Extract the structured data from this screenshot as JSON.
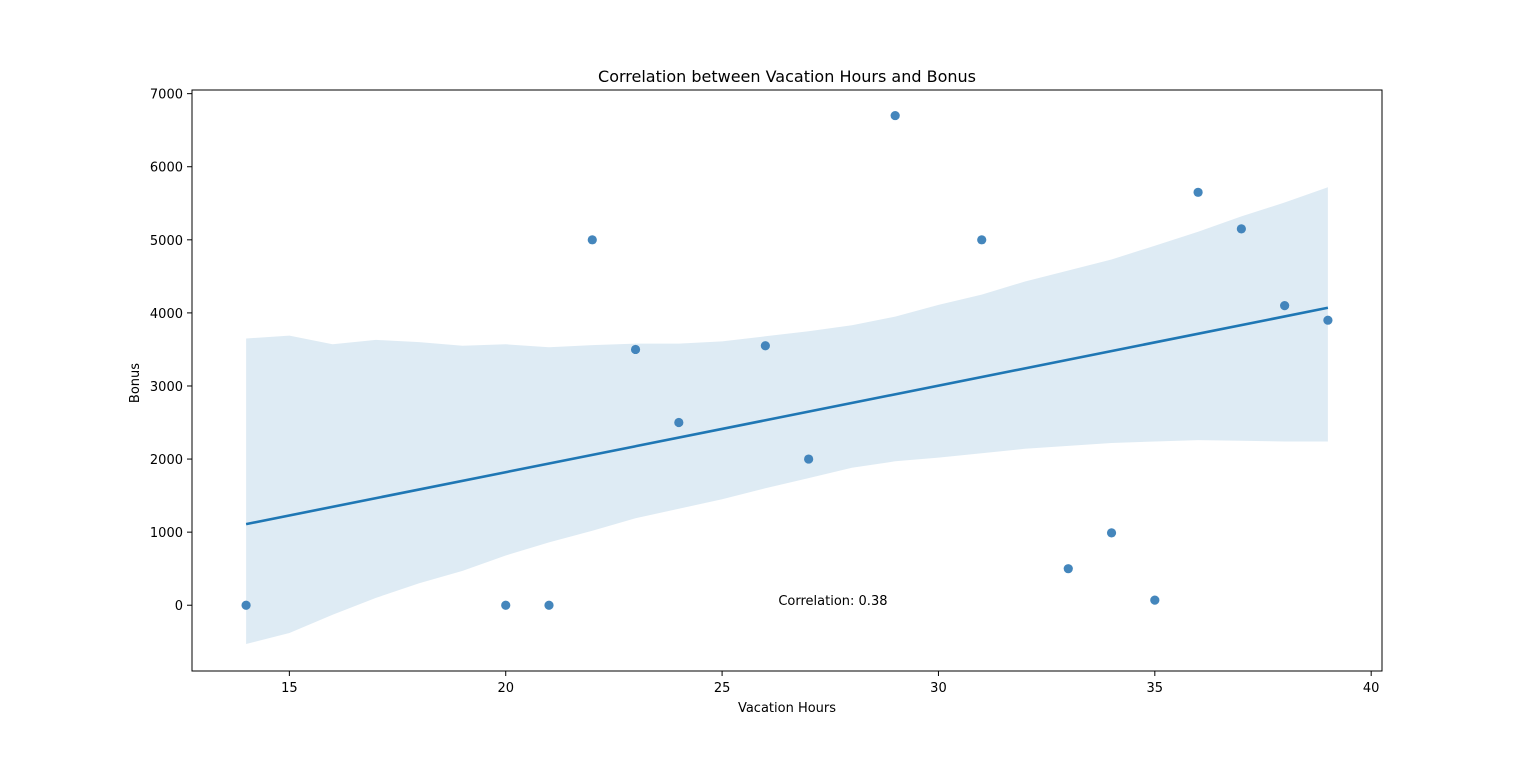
{
  "chart_data": {
    "type": "scatter",
    "title": "Correlation between Vacation Hours and Bonus",
    "xlabel": "Vacation Hours",
    "ylabel": "Bonus",
    "xlim": [
      12.75,
      40.25
    ],
    "ylim": [
      -900,
      7050
    ],
    "xticks": [
      15,
      20,
      25,
      30,
      35,
      40
    ],
    "yticks": [
      0,
      1000,
      2000,
      3000,
      4000,
      5000,
      6000,
      7000
    ],
    "grid": false,
    "annotation": {
      "text": "Correlation: 0.38",
      "x": 26.3,
      "y": 70
    },
    "points": [
      {
        "x": 14,
        "y": 0
      },
      {
        "x": 20,
        "y": 0
      },
      {
        "x": 21,
        "y": 0
      },
      {
        "x": 22,
        "y": 5000
      },
      {
        "x": 23,
        "y": 3500
      },
      {
        "x": 24,
        "y": 2500
      },
      {
        "x": 26,
        "y": 3550
      },
      {
        "x": 27,
        "y": 2000
      },
      {
        "x": 29,
        "y": 6700
      },
      {
        "x": 31,
        "y": 5000
      },
      {
        "x": 33,
        "y": 500
      },
      {
        "x": 34,
        "y": 990
      },
      {
        "x": 35,
        "y": 70
      },
      {
        "x": 36,
        "y": 5650
      },
      {
        "x": 37,
        "y": 5150
      },
      {
        "x": 38,
        "y": 4100
      },
      {
        "x": 39,
        "y": 3900
      }
    ],
    "regression_line": [
      {
        "x": 14,
        "y": 1110
      },
      {
        "x": 39,
        "y": 4070
      }
    ],
    "confidence_band": [
      {
        "x": 14,
        "lower": -530,
        "upper": 3650
      },
      {
        "x": 15,
        "lower": -380,
        "upper": 3690
      },
      {
        "x": 16,
        "lower": -130,
        "upper": 3570
      },
      {
        "x": 17,
        "lower": 100,
        "upper": 3630
      },
      {
        "x": 18,
        "lower": 300,
        "upper": 3600
      },
      {
        "x": 19,
        "lower": 470,
        "upper": 3550
      },
      {
        "x": 20,
        "lower": 680,
        "upper": 3570
      },
      {
        "x": 21,
        "lower": 860,
        "upper": 3530
      },
      {
        "x": 22,
        "lower": 1020,
        "upper": 3560
      },
      {
        "x": 23,
        "lower": 1190,
        "upper": 3580
      },
      {
        "x": 24,
        "lower": 1320,
        "upper": 3580
      },
      {
        "x": 25,
        "lower": 1450,
        "upper": 3610
      },
      {
        "x": 26,
        "lower": 1600,
        "upper": 3680
      },
      {
        "x": 27,
        "lower": 1740,
        "upper": 3750
      },
      {
        "x": 28,
        "lower": 1880,
        "upper": 3830
      },
      {
        "x": 29,
        "lower": 1970,
        "upper": 3950
      },
      {
        "x": 30,
        "lower": 2020,
        "upper": 4110
      },
      {
        "x": 31,
        "lower": 2080,
        "upper": 4250
      },
      {
        "x": 32,
        "lower": 2140,
        "upper": 4430
      },
      {
        "x": 33,
        "lower": 2180,
        "upper": 4580
      },
      {
        "x": 34,
        "lower": 2220,
        "upper": 4730
      },
      {
        "x": 35,
        "lower": 2240,
        "upper": 4920
      },
      {
        "x": 36,
        "lower": 2260,
        "upper": 5110
      },
      {
        "x": 37,
        "lower": 2250,
        "upper": 5320
      },
      {
        "x": 38,
        "lower": 2240,
        "upper": 5510
      },
      {
        "x": 39,
        "lower": 2240,
        "upper": 5720
      }
    ],
    "colors": {
      "points": "#3a7fb8",
      "line": "#1f77b4",
      "band": "#1f77b4"
    }
  }
}
